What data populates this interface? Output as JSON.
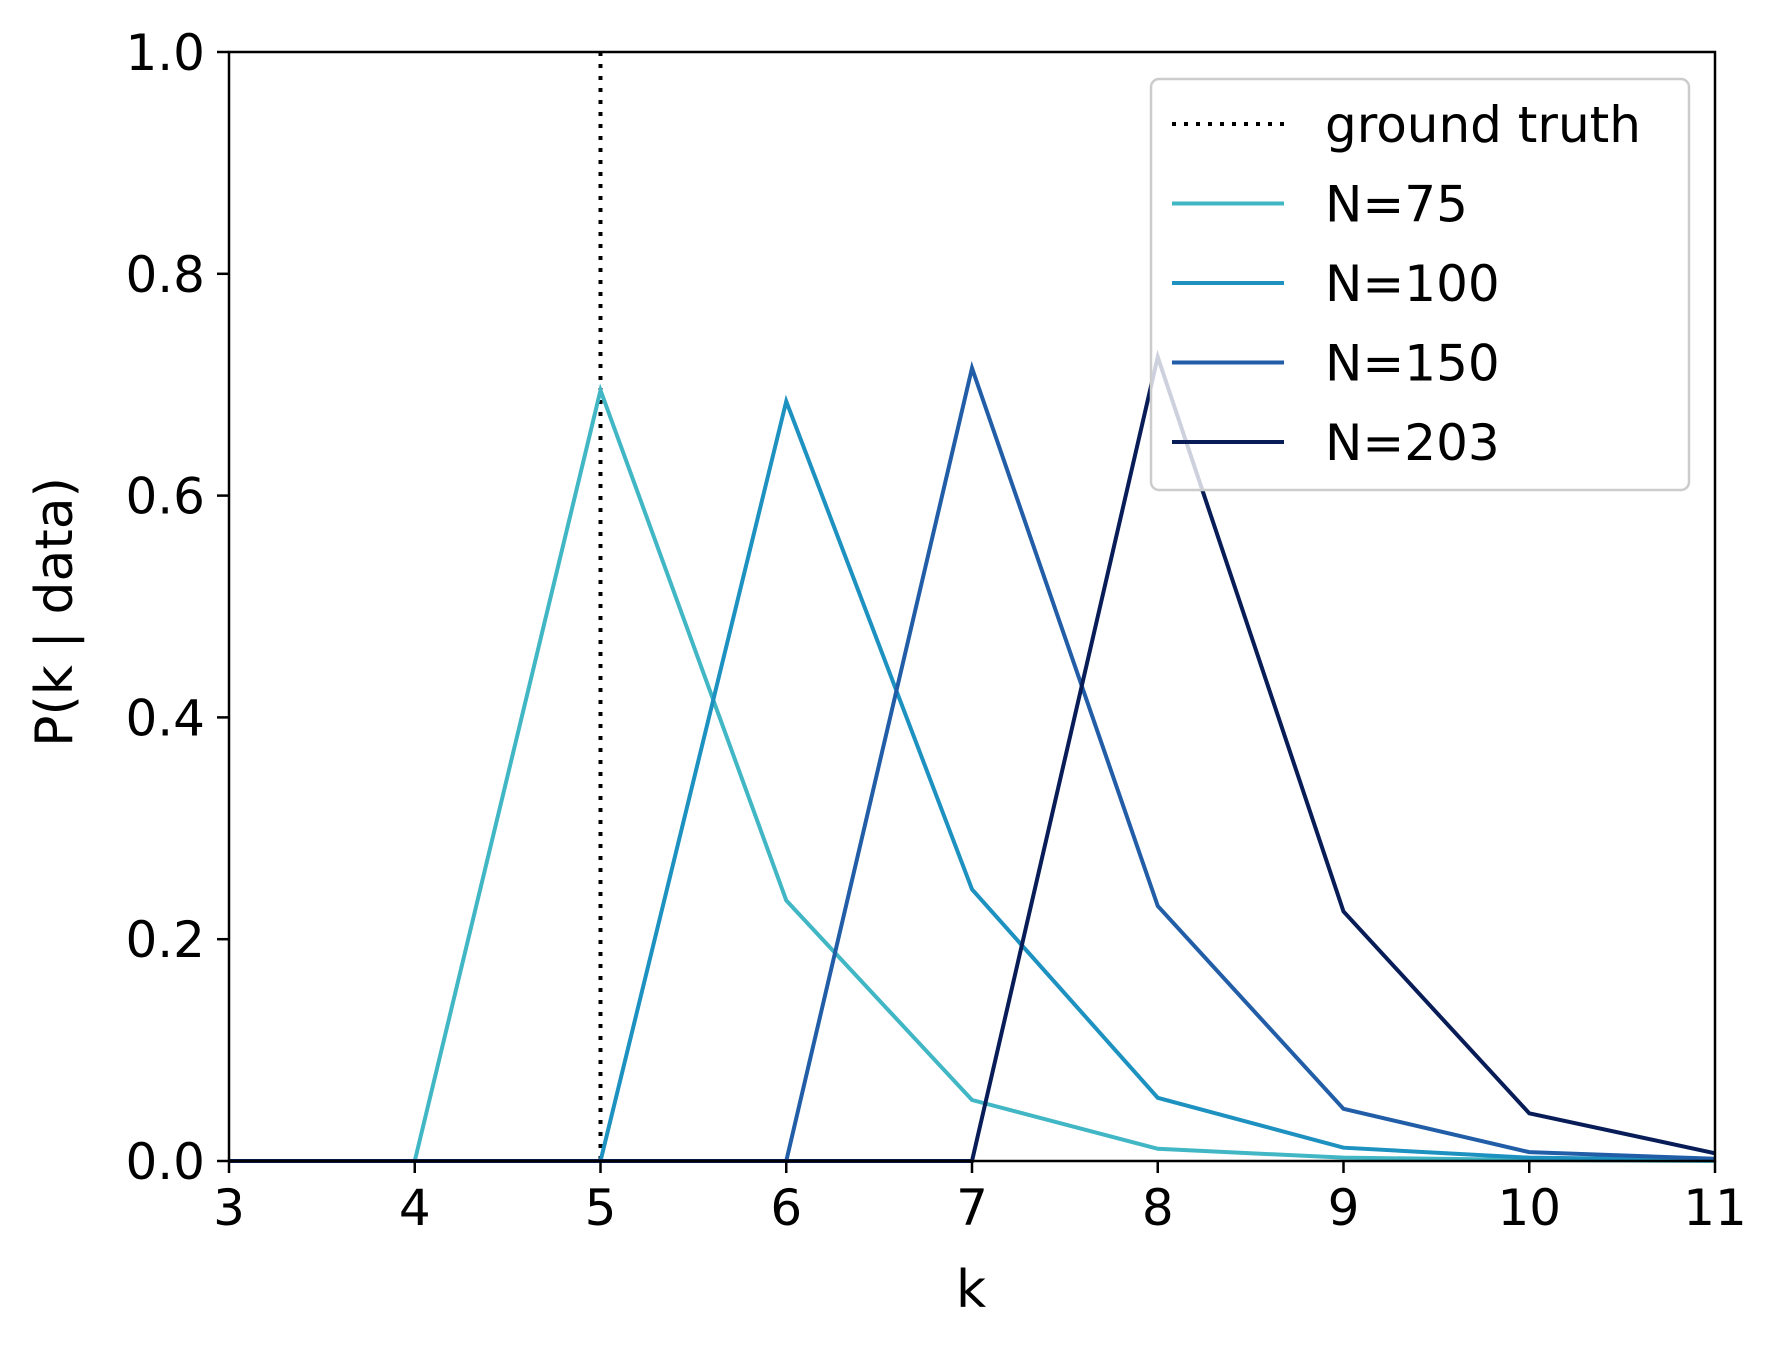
{
  "chart_data": {
    "type": "line",
    "xlabel": "k",
    "ylabel": "P(k | data)",
    "xlim": [
      3,
      11
    ],
    "ylim": [
      0,
      1.0
    ],
    "xticks": [
      3,
      4,
      5,
      6,
      7,
      8,
      9,
      10,
      11
    ],
    "yticks": [
      0.0,
      0.2,
      0.4,
      0.6,
      0.8,
      1.0
    ],
    "xtick_labels": [
      "3",
      "4",
      "5",
      "6",
      "7",
      "8",
      "9",
      "10",
      "11"
    ],
    "ytick_labels": [
      "0.0",
      "0.2",
      "0.4",
      "0.6",
      "0.8",
      "1.0"
    ],
    "grid": false,
    "legend_position": "top-right",
    "x": [
      3,
      4,
      5,
      6,
      7,
      8,
      9,
      10,
      11
    ],
    "reference_line": {
      "name": "ground truth",
      "x": 5,
      "style": "dotted",
      "color": "#000000"
    },
    "series": [
      {
        "name": "N=75",
        "color": "#41b6c4",
        "values": [
          0.0,
          0.0,
          0.695,
          0.235,
          0.055,
          0.011,
          0.003,
          0.001,
          0.0
        ]
      },
      {
        "name": "N=100",
        "color": "#1d91c0",
        "values": [
          0.0,
          0.0,
          0.0,
          0.685,
          0.245,
          0.057,
          0.012,
          0.003,
          0.001
        ]
      },
      {
        "name": "N=150",
        "color": "#225ea8",
        "values": [
          0.0,
          0.0,
          0.0,
          0.0,
          0.715,
          0.23,
          0.047,
          0.008,
          0.002
        ]
      },
      {
        "name": "N=203",
        "color": "#081d58",
        "values": [
          0.0,
          0.0,
          0.0,
          0.0,
          0.0,
          0.725,
          0.225,
          0.043,
          0.007
        ]
      }
    ]
  }
}
